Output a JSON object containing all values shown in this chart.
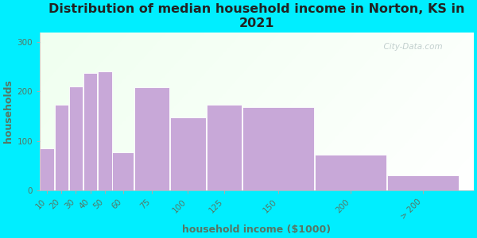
{
  "title": "Distribution of median household income in Norton, KS in\n2021",
  "xlabel": "household income ($1000)",
  "ylabel": "households",
  "bar_labels": [
    "10",
    "20",
    "30",
    "40",
    "50",
    "60",
    "75",
    "100",
    "125",
    "150",
    "200",
    "> 200"
  ],
  "bar_heights": [
    85,
    173,
    210,
    238,
    240,
    78,
    208,
    148,
    173,
    168,
    73,
    30
  ],
  "bar_widths": [
    10,
    10,
    10,
    10,
    10,
    15,
    25,
    25,
    25,
    50,
    50,
    50
  ],
  "bar_lefts": [
    10,
    20,
    30,
    40,
    50,
    60,
    75,
    100,
    125,
    150,
    200,
    250
  ],
  "bar_color": "#c8a8d8",
  "bar_edgecolor": "#ffffff",
  "ylim": [
    0,
    320
  ],
  "yticks": [
    0,
    100,
    200,
    300
  ],
  "bg_outer": "#00eeff",
  "bg_inner": "#f0fff0",
  "title_fontsize": 11.5,
  "title_color": "#222222",
  "axis_label_fontsize": 9,
  "axis_label_color": "#557766",
  "tick_fontsize": 7.5,
  "tick_color": "#557766",
  "watermark": "  City-Data.com",
  "watermark_icon": "ⓘ",
  "xlim_left": 10,
  "xlim_right": 310
}
